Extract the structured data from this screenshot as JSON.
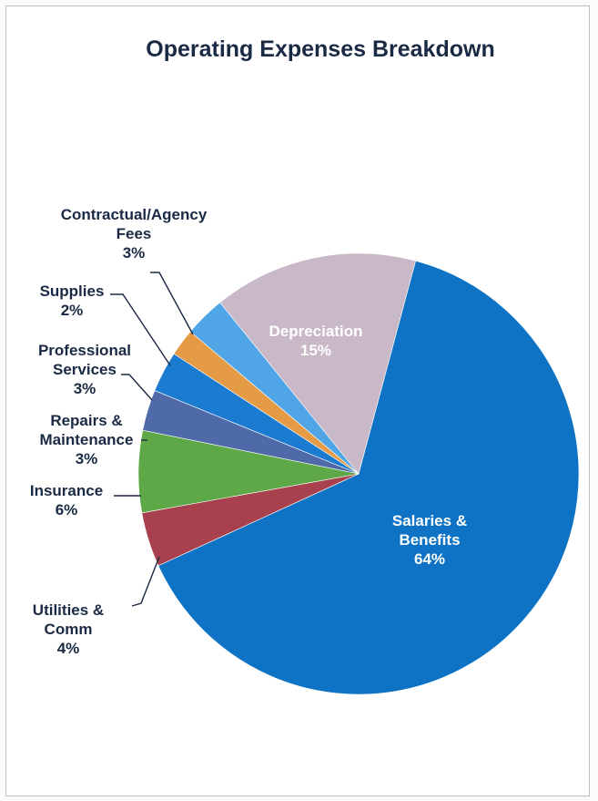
{
  "chart_data": {
    "type": "pie",
    "title": "Operating Expenses Breakdown",
    "slices": [
      {
        "label": "Salaries & Benefits",
        "label_lines": [
          "Salaries &",
          "Benefits"
        ],
        "value_text": "64%",
        "value": 64,
        "color": "#0e73c4"
      },
      {
        "label": "Utilities & Comm",
        "label_lines": [
          "Utilities &",
          "Comm"
        ],
        "value_text": "4%",
        "value": 4,
        "color": "#a8404d"
      },
      {
        "label": "Insurance",
        "label_lines": [
          "Insurance"
        ],
        "value_text": "6%",
        "value": 6,
        "color": "#5ea848"
      },
      {
        "label": "Repairs & Maintenance",
        "label_lines": [
          "Repairs &",
          "Maintenance"
        ],
        "value_text": "3%",
        "value": 3,
        "color": "#4e6aa8"
      },
      {
        "label": "Professional Services",
        "label_lines": [
          "Professional",
          "Services"
        ],
        "value_text": "3%",
        "value": 3,
        "color": "#1a7bd0"
      },
      {
        "label": "Supplies",
        "label_lines": [
          "Supplies"
        ],
        "value_text": "2%",
        "value": 2,
        "color": "#e59a45"
      },
      {
        "label": "Contractual/Agency Fees",
        "label_lines": [
          "Contractual/Agency",
          "Fees"
        ],
        "value_text": "3%",
        "value": 3,
        "color": "#4fa5e6"
      },
      {
        "label": "Depreciation",
        "label_lines": [
          "Depreciation"
        ],
        "value_text": "15%",
        "value": 15,
        "color": "#c9b8c8"
      }
    ],
    "legend": "none"
  }
}
